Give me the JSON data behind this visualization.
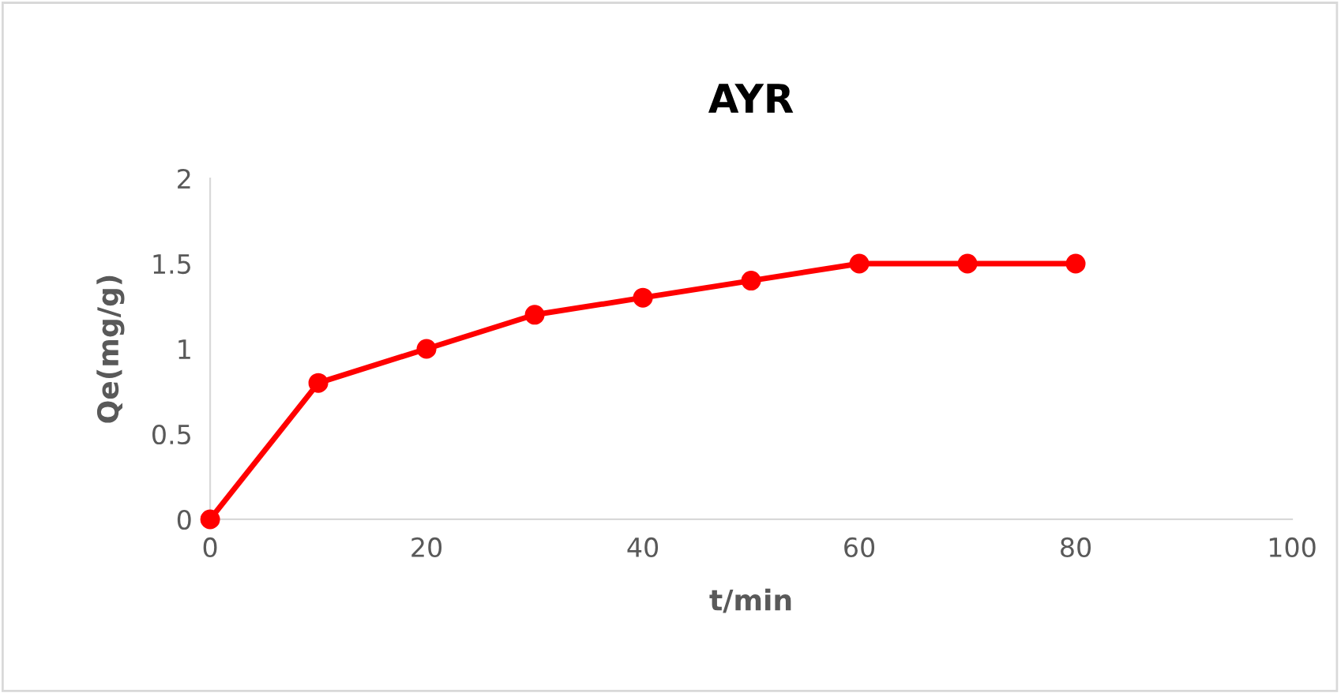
{
  "chart_data": {
    "type": "line",
    "title": "AYR",
    "xlabel": "t/min",
    "ylabel": "Qe(mg/g)",
    "x": [
      0,
      10,
      20,
      30,
      40,
      50,
      60,
      70,
      80
    ],
    "series": [
      {
        "color": "#ff0000",
        "values": [
          0,
          0.8,
          1.0,
          1.2,
          1.3,
          1.4,
          1.5,
          1.5,
          1.5
        ]
      }
    ],
    "xlim": [
      0,
      100
    ],
    "xticks": [
      0,
      20,
      40,
      60,
      80,
      100
    ],
    "ylim": [
      0,
      2
    ],
    "yticks": [
      0,
      0.5,
      1,
      1.5,
      2
    ],
    "marker": "circle",
    "line_style": "solid",
    "grid": false,
    "legend": false
  }
}
